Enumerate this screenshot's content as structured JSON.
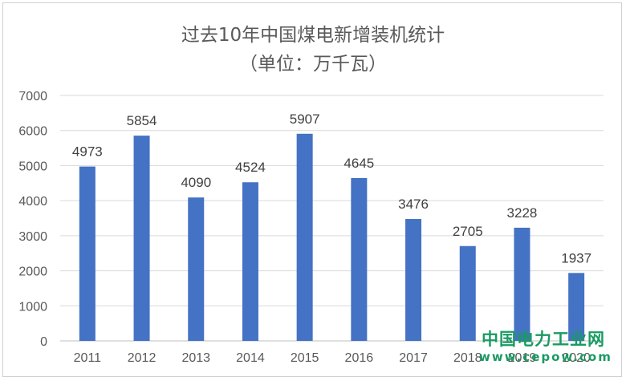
{
  "chart_data": {
    "type": "bar",
    "title": "过去10年中国煤电新增装机统计",
    "subtitle": "（单位：万千瓦）",
    "categories": [
      "2011",
      "2012",
      "2013",
      "2014",
      "2015",
      "2016",
      "2017",
      "2018",
      "2019",
      "2020"
    ],
    "values": [
      4973,
      5854,
      4090,
      4524,
      5907,
      4645,
      3476,
      2705,
      3228,
      1937
    ],
    "ylim": [
      0,
      7000
    ],
    "yticks": [
      0,
      1000,
      2000,
      3000,
      4000,
      5000,
      6000,
      7000
    ],
    "grid": true,
    "bar_color": "#4472c4",
    "data_labels": true,
    "xlabel": "",
    "ylabel": ""
  },
  "watermark": {
    "name": "中国电力工业网",
    "url": "www.cepow.com",
    "color": "#1a9a63"
  }
}
